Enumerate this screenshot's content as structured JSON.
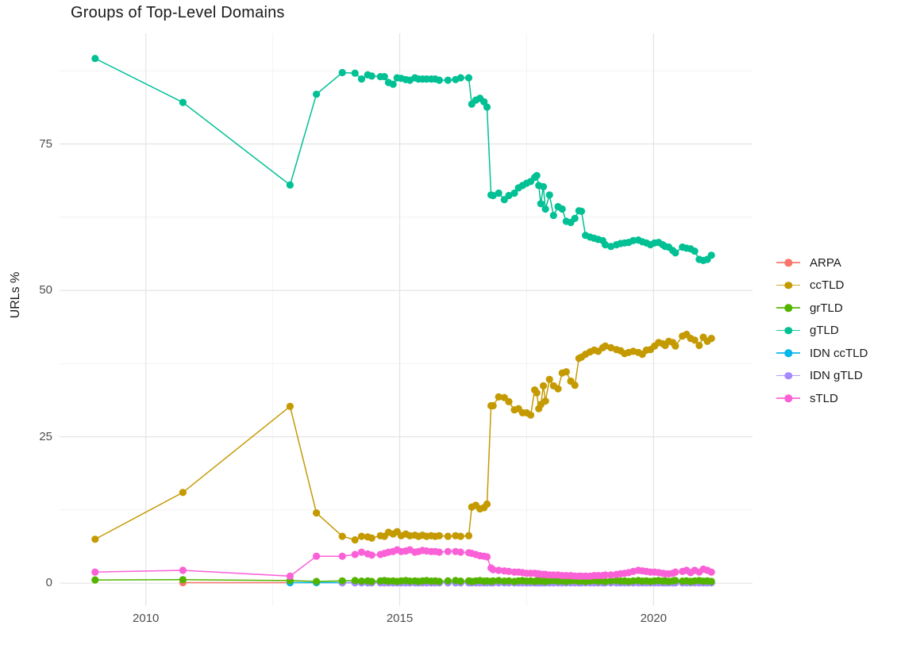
{
  "title": "Groups of Top-Level Domains",
  "chart_data": {
    "type": "line",
    "title": "Groups of Top-Level Domains",
    "xlabel": "",
    "ylabel": "URLs %",
    "legend_position": "right",
    "grid": "major+minor",
    "x_domain": [
      2008.3,
      2021.95
    ],
    "y_domain": [
      -3.9,
      93.9
    ],
    "x_major_ticks": [
      2010,
      2015,
      2020
    ],
    "x_minor_ticks": [
      2012.5,
      2017.5
    ],
    "y_major_ticks": [
      0,
      25,
      50,
      75
    ],
    "y_minor_ticks": [
      12.5,
      37.5,
      62.5,
      87.5
    ],
    "dense_years": [
      2013.87,
      2014.12,
      2014.25,
      2014.37,
      2014.45,
      2014.62,
      2014.7,
      2014.78,
      2014.87,
      2014.95,
      2015.03,
      2015.12,
      2015.2,
      2015.3,
      2015.37,
      2015.45,
      2015.53,
      2015.62,
      2015.7,
      2015.78,
      2015.95,
      2016.1,
      2016.2,
      2016.36,
      2016.42,
      2016.5,
      2016.58,
      2016.66,
      2016.72,
      2016.8,
      2016.84,
      2016.95,
      2017.06,
      2017.15,
      2017.26,
      2017.34,
      2017.42,
      2017.5,
      2017.58,
      2017.66,
      2017.7,
      2017.74,
      2017.78,
      2017.83,
      2017.87,
      2017.95,
      2018.03,
      2018.12,
      2018.2,
      2018.28,
      2018.37,
      2018.45,
      2018.53,
      2018.58,
      2018.66,
      2018.75,
      2018.83,
      2018.91,
      2019.0,
      2019.05,
      2019.16,
      2019.27,
      2019.35,
      2019.43,
      2019.51,
      2019.6,
      2019.7,
      2019.78,
      2019.86,
      2019.94,
      2020.02,
      2020.1,
      2020.18,
      2020.23,
      2020.3,
      2020.38,
      2020.43,
      2020.57,
      2020.65,
      2020.73,
      2020.81,
      2020.9,
      2020.98,
      2021.06,
      2021.14
    ],
    "draw_order": [
      "ARPA",
      "IDN ccTLD",
      "IDN gTLD",
      "grTLD",
      "ccTLD",
      "gTLD",
      "sTLD"
    ],
    "series": [
      {
        "name": "ARPA",
        "color": "#F8766D",
        "early_points": [
          [
            2010.73,
            0.1
          ],
          [
            2012.84,
            0.1
          ]
        ],
        "dense_values": null
      },
      {
        "name": "ccTLD",
        "color": "#C49A00",
        "early_points": [
          [
            2009.0,
            7.5
          ],
          [
            2010.73,
            15.5
          ],
          [
            2012.84,
            30.2
          ],
          [
            2013.36,
            12.0
          ]
        ],
        "dense_values": [
          8.0,
          7.4,
          8.0,
          7.9,
          7.7,
          8.1,
          8.0,
          8.7,
          8.4,
          8.8,
          8.1,
          8.4,
          8.1,
          8.2,
          8.0,
          8.2,
          8.0,
          8.1,
          8.0,
          8.1,
          8.0,
          8.1,
          8.0,
          8.1,
          13.0,
          13.3,
          12.7,
          12.9,
          13.5,
          30.3,
          30.3,
          31.8,
          31.7,
          31.0,
          29.6,
          29.8,
          29.1,
          29.1,
          28.7,
          33.0,
          32.5,
          29.8,
          30.5,
          33.7,
          31.1,
          34.8,
          33.7,
          33.2,
          35.9,
          36.1,
          34.5,
          33.8,
          38.4,
          38.6,
          39.1,
          39.5,
          39.8,
          39.6,
          40.2,
          40.5,
          40.2,
          39.9,
          39.7,
          39.2,
          39.4,
          39.6,
          39.4,
          39.1,
          39.8,
          39.9,
          40.5,
          41.1,
          40.9,
          40.6,
          41.3,
          41.1,
          40.5,
          42.2,
          42.5,
          41.8,
          41.5,
          40.6,
          42.0,
          41.3,
          41.8
        ]
      },
      {
        "name": "grTLD",
        "color": "#53B400",
        "early_points": [
          [
            2009.0,
            0.55
          ],
          [
            2010.73,
            0.6
          ],
          [
            2012.84,
            0.45
          ],
          [
            2013.36,
            0.3
          ]
        ],
        "dense_values": [
          0.4,
          0.45,
          0.35,
          0.4,
          0.3,
          0.4,
          0.45,
          0.35,
          0.4,
          0.3,
          0.4,
          0.45,
          0.35,
          0.4,
          0.3,
          0.4,
          0.45,
          0.35,
          0.4,
          0.3,
          0.4,
          0.45,
          0.35,
          0.4,
          0.3,
          0.4,
          0.45,
          0.35,
          0.4,
          0.3,
          0.4,
          0.45,
          0.35,
          0.4,
          0.3,
          0.4,
          0.45,
          0.35,
          0.4,
          0.3,
          0.4,
          0.45,
          0.35,
          0.4,
          0.3,
          0.4,
          0.45,
          0.35,
          0.4,
          0.3,
          0.4,
          0.45,
          0.35,
          0.4,
          0.3,
          0.4,
          0.45,
          0.35,
          0.4,
          0.3,
          0.4,
          0.45,
          0.35,
          0.4,
          0.3,
          0.4,
          0.45,
          0.35,
          0.4,
          0.3,
          0.4,
          0.45,
          0.35,
          0.4,
          0.3,
          0.4,
          0.45,
          0.35,
          0.4,
          0.3,
          0.4,
          0.45,
          0.35,
          0.4,
          0.3
        ]
      },
      {
        "name": "gTLD",
        "color": "#00C094",
        "early_points": [
          [
            2009.0,
            89.6
          ],
          [
            2010.73,
            82.1
          ],
          [
            2012.84,
            68.0
          ],
          [
            2013.36,
            83.5
          ]
        ],
        "dense_values": [
          87.2,
          87.1,
          86.1,
          86.8,
          86.6,
          86.5,
          86.5,
          85.5,
          85.2,
          86.3,
          86.2,
          86.0,
          85.9,
          86.3,
          86.1,
          86.1,
          86.1,
          86.1,
          86.1,
          85.9,
          85.9,
          86.0,
          86.3,
          86.3,
          81.8,
          82.5,
          82.8,
          82.2,
          81.3,
          66.3,
          66.2,
          66.6,
          65.5,
          66.2,
          66.6,
          67.5,
          67.9,
          68.3,
          68.6,
          69.3,
          69.6,
          67.9,
          64.8,
          67.7,
          63.9,
          66.3,
          62.8,
          64.3,
          63.9,
          61.8,
          61.6,
          62.3,
          63.6,
          63.5,
          59.4,
          59.1,
          58.9,
          58.7,
          58.5,
          57.8,
          57.5,
          57.8,
          58.0,
          58.1,
          58.2,
          58.5,
          58.6,
          58.3,
          58.1,
          57.8,
          58.1,
          58.2,
          57.8,
          57.5,
          57.4,
          56.8,
          56.4,
          57.4,
          57.2,
          57.1,
          56.7,
          55.3,
          55.1,
          55.3,
          56.0
        ]
      },
      {
        "name": "IDN ccTLD",
        "color": "#00B6EB",
        "early_points": [
          [
            2012.84,
            0.1
          ],
          [
            2013.36,
            0.1
          ]
        ],
        "dense_values": 0.1
      },
      {
        "name": "IDN gTLD",
        "color": "#A58AFF",
        "early_points": [],
        "dense_values": 0.05
      },
      {
        "name": "sTLD",
        "color": "#FB61D7",
        "early_points": [
          [
            2009.0,
            1.9
          ],
          [
            2010.73,
            2.2
          ],
          [
            2012.84,
            1.2
          ],
          [
            2013.36,
            4.6
          ]
        ],
        "dense_values": [
          4.6,
          4.9,
          5.3,
          5.0,
          4.8,
          4.9,
          5.1,
          5.3,
          5.4,
          5.7,
          5.4,
          5.5,
          5.7,
          5.3,
          5.4,
          5.6,
          5.5,
          5.4,
          5.4,
          5.3,
          5.4,
          5.4,
          5.3,
          5.2,
          5.1,
          4.9,
          4.7,
          4.6,
          4.5,
          2.6,
          2.3,
          2.2,
          2.1,
          2.0,
          1.9,
          1.9,
          1.8,
          1.7,
          1.7,
          1.7,
          1.6,
          1.6,
          1.5,
          1.5,
          1.5,
          1.4,
          1.4,
          1.4,
          1.3,
          1.3,
          1.3,
          1.2,
          1.2,
          1.2,
          1.2,
          1.2,
          1.3,
          1.3,
          1.3,
          1.4,
          1.4,
          1.5,
          1.6,
          1.7,
          1.8,
          2.0,
          2.2,
          2.1,
          2.0,
          1.9,
          1.9,
          1.8,
          1.7,
          1.6,
          1.6,
          1.7,
          1.9,
          2.0,
          2.2,
          1.8,
          2.2,
          1.9,
          2.4,
          2.2,
          1.9
        ]
      }
    ]
  },
  "style": {
    "grid_major_color": "#E4E4E4",
    "grid_minor_color": "#F2F2F2",
    "tick_label_color": "#4d4d4d",
    "point_radius": 4.6
  }
}
